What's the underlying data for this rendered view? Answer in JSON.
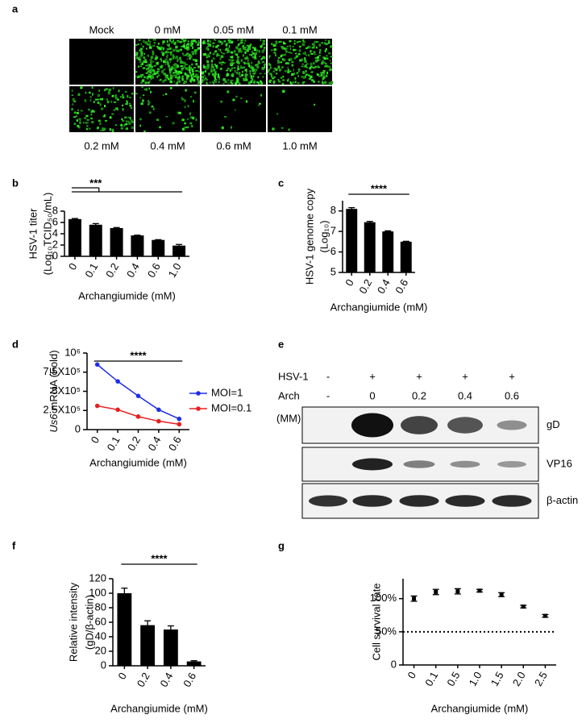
{
  "micrographs": {
    "panel": "a",
    "labels": [
      "Mock",
      "0 mM",
      "0.05 mM",
      "0.1 mM",
      "0.2 mM",
      "0.4 mM",
      "0.6 mM",
      "1.0 mM"
    ]
  },
  "western_blot": {
    "panel": "e",
    "rows": [
      {
        "label": "HSV-1",
        "lanes": [
          "-",
          "+",
          "+",
          "+",
          "+"
        ]
      },
      {
        "label": "Arch",
        "lanes": [
          "-",
          "0",
          "0.2",
          "0.4",
          "0.6"
        ]
      }
    ],
    "unit": "(MM)",
    "bands": [
      "gD",
      "VP16",
      "β-actin"
    ]
  },
  "chart_data": [
    {
      "panel": "b",
      "type": "bar",
      "ylabel": [
        "HSV-1 titer",
        "(Log₁₀TCID₅₀/mL)"
      ],
      "xlabel": "Archangiumide (mM)",
      "categories": [
        "0",
        "0.1",
        "0.2",
        "0.4",
        "0.6",
        "1.0"
      ],
      "values": [
        6.6,
        5.6,
        5.0,
        3.7,
        2.9,
        1.9
      ],
      "errors": [
        0.1,
        0.2,
        0.1,
        0.05,
        0.05,
        0.2
      ],
      "color": "#000000",
      "ylim": [
        0,
        8
      ],
      "yticks": [
        0,
        2,
        4,
        6,
        8
      ],
      "significance": "***"
    },
    {
      "panel": "c",
      "type": "bar",
      "ylabel": [
        "HSV-1 genome copy",
        "(Log₁₀)"
      ],
      "xlabel": "Archangiumide (mM)",
      "categories": [
        "0",
        "0.2",
        "0.4",
        "0.6"
      ],
      "values": [
        8.1,
        7.45,
        7.0,
        6.5
      ],
      "errors": [
        0.06,
        0.04,
        0.03,
        0.02
      ],
      "color": "#000000",
      "ylim": [
        5,
        8.5
      ],
      "yticks": [
        5,
        6,
        7,
        8
      ],
      "significance": "****"
    },
    {
      "panel": "d",
      "type": "line",
      "ylabel": [
        "Us6",
        "mRNA (Fold)"
      ],
      "xlabel": "Archangiumide (mM)",
      "categories": [
        "0",
        "0.1",
        "0.2",
        "0.4",
        "0.6"
      ],
      "series": [
        {
          "name": "MOI=1",
          "color": "#1f2ee6",
          "values": [
            850000,
            630000,
            440000,
            260000,
            140000
          ]
        },
        {
          "name": "MOI=0.1",
          "color": "#e62020",
          "values": [
            310000,
            260000,
            170000,
            110000,
            70000
          ]
        }
      ],
      "ylim": [
        0,
        1000000
      ],
      "yticks": [
        0,
        {
          "value": 250000,
          "label": "2.5X10⁵"
        },
        {
          "value": 500000,
          "label": "5X10⁵"
        },
        {
          "value": 750000,
          "label": "7.5X10⁵"
        },
        {
          "value": 1000000,
          "label": "10⁶"
        }
      ],
      "significance": "****"
    },
    {
      "panel": "f",
      "type": "bar",
      "ylabel": [
        "Relative intensity",
        "(gD/β-actin)"
      ],
      "xlabel": "Archangiumide (mM)",
      "categories": [
        "0",
        "0.2",
        "0.4",
        "0.6"
      ],
      "values": [
        100,
        56,
        50,
        6
      ],
      "errors": [
        7,
        6,
        5,
        1
      ],
      "color": "#000000",
      "ylim": [
        0,
        120
      ],
      "yticks": [
        0,
        20,
        40,
        60,
        80,
        100,
        120
      ],
      "significance": "****"
    },
    {
      "panel": "g",
      "type": "scatter",
      "ylabel": [
        "Cell survival rate"
      ],
      "xlabel": "Archangiumide (mM)",
      "categories": [
        "0",
        "0.1",
        "0.5",
        "1.0",
        "1.5",
        "2.0",
        "2.5"
      ],
      "values": [
        100,
        110,
        111,
        112,
        106,
        88,
        74
      ],
      "errors": [
        4,
        4,
        4,
        2,
        3,
        2,
        2
      ],
      "color": "#000000",
      "ylim": [
        0,
        130
      ],
      "yticks": [
        0,
        {
          "value": 50,
          "label": "50%"
        },
        {
          "value": 100,
          "label": "100%"
        }
      ],
      "reference_line": 50
    }
  ]
}
